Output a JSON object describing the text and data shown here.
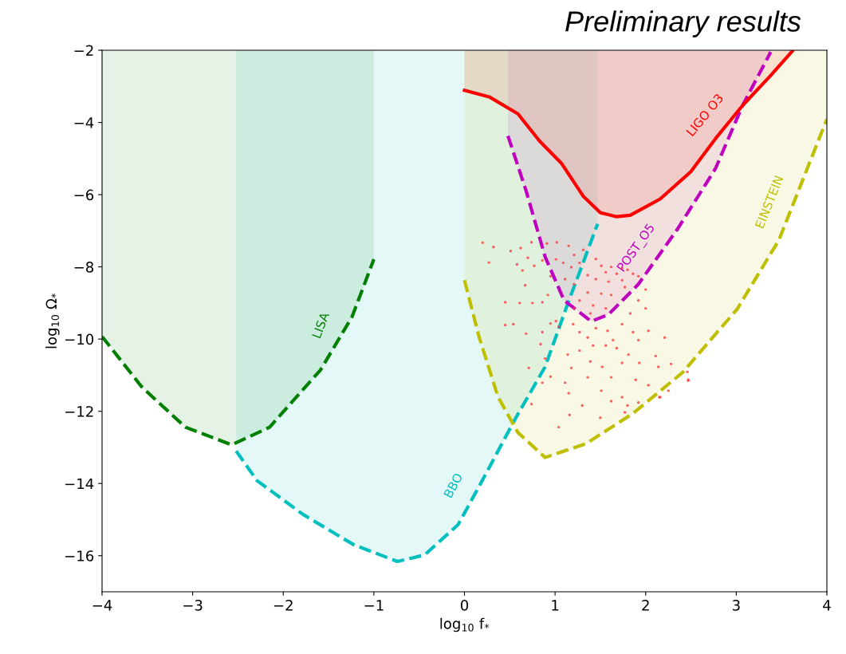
{
  "chart_data": {
    "type": "area",
    "title": "Preliminary results",
    "xlabel": "log$_{10}$ f$_{*}$",
    "ylabel": "log$_{10}$ Ω$_{*}$",
    "xlim": [
      -4,
      4
    ],
    "ylim": [
      -17,
      -2
    ],
    "xticks": [
      {
        "value": -4,
        "label": "−4"
      },
      {
        "value": -3,
        "label": "−3"
      },
      {
        "value": -2,
        "label": "−2"
      },
      {
        "value": -1,
        "label": "−1"
      },
      0,
      1,
      2,
      3,
      4
    ],
    "yticks": [
      {
        "value": -16,
        "label": "−16"
      },
      {
        "value": -14,
        "label": "−14"
      },
      {
        "value": -12,
        "label": "−12"
      },
      {
        "value": -10,
        "label": "−10"
      },
      {
        "value": -8,
        "label": "−8"
      },
      {
        "value": -6,
        "label": "−6"
      },
      {
        "value": -4,
        "label": "−4"
      },
      {
        "value": -2,
        "label": "−2"
      }
    ],
    "grid": false,
    "legend": false,
    "series": [
      {
        "color": "#008000",
        "line_style": "dashed",
        "x": [
          -4,
          -3.56,
          -3.08,
          -2.57,
          -2.15,
          -1.59,
          -1.24,
          -1.0
        ],
        "values": [
          -9.93,
          -11.33,
          -12.44,
          -12.93,
          -12.44,
          -10.86,
          -9.38,
          -7.79
        ]
      },
      {
        "color": "#00bfbf",
        "line_style": "dashed",
        "x": [
          -2.52,
          -2.29,
          -1.78,
          -1.22,
          -0.74,
          -0.44,
          -0.07,
          0.22,
          0.56,
          0.89,
          1.13,
          1.47
        ],
        "values": [
          -13.1,
          -13.92,
          -14.86,
          -15.7,
          -16.16,
          -15.98,
          -15.14,
          -13.81,
          -12.21,
          -10.77,
          -9.09,
          -6.81
        ]
      },
      {
        "color": "#bf00bf",
        "line_style": "dashed",
        "x": [
          0.48,
          0.68,
          0.89,
          1.1,
          1.4,
          1.59,
          1.92,
          2.35,
          2.77,
          3.07,
          3.38
        ],
        "values": [
          -4.37,
          -5.89,
          -7.72,
          -8.93,
          -9.51,
          -9.32,
          -8.48,
          -6.96,
          -5.28,
          -3.53,
          -2.05
        ]
      },
      {
        "color": "#ff0000",
        "line_style": "solid",
        "x": [
          0,
          0.28,
          0.59,
          0.83,
          1.07,
          1.31,
          1.5,
          1.68,
          1.83,
          2.16,
          2.5,
          2.77,
          3.07,
          3.38,
          3.62
        ],
        "values": [
          -3.11,
          -3.3,
          -3.76,
          -4.52,
          -5.13,
          -6.04,
          -6.5,
          -6.61,
          -6.57,
          -6.12,
          -5.36,
          -4.45,
          -3.53,
          -2.7,
          -2.02
        ]
      },
      {
        "color": "#bfbf00",
        "line_style": "dashed",
        "x": [
          0,
          0.16,
          0.37,
          0.59,
          0.89,
          1.34,
          1.86,
          2.41,
          3.01,
          3.47,
          4.0
        ],
        "values": [
          -8.37,
          -9.93,
          -11.6,
          -12.59,
          -13.28,
          -12.9,
          -12.06,
          -10.92,
          -9.17,
          -7.26,
          -3.91
        ]
      },
      {
        "type": "scatter",
        "color": "#ff3b3b",
        "marker": "circle",
        "x": [
          0.2,
          0.32,
          0.27,
          0.51,
          0.62,
          0.74,
          0.7,
          0.58,
          0.64,
          0.77,
          0.86,
          0.91,
          1.02,
          1.15,
          1.21,
          1.09,
          1.01,
          1.18,
          1.27,
          1.31,
          0.95,
          1.11,
          1.21,
          1.36,
          1.45,
          1.51,
          1.56,
          1.62,
          1.68,
          1.74,
          1.8,
          1.86,
          1.92,
          1.45,
          1.59,
          1.74,
          1.36,
          1.51,
          1.62,
          1.77,
          1.27,
          1.42,
          1.56,
          1.21,
          1.39,
          0.45,
          0.61,
          0.75,
          0.86,
          0.67,
          0.92,
          0.45,
          0.54,
          0.68,
          0.86,
          0.95,
          1.01,
          0.84,
          0.71,
          0.89,
          1.04,
          1.2,
          1.27,
          1.36,
          1.45,
          1.58,
          1.64,
          1.74,
          1.83,
          1.92,
          2.0,
          2.0,
          1.86,
          1.92,
          2.03,
          2.21,
          1.42,
          1.56,
          1.68,
          1.81,
          1.14,
          1.27,
          1.39,
          1.52,
          1.74,
          2.11,
          1.93,
          2.14,
          2.28,
          1.18,
          1.36,
          1.62,
          1.89,
          2.03,
          2.25,
          2.46,
          2.47,
          0.95,
          1.11,
          1.15,
          1.51,
          1.74,
          2.15,
          0.86,
          1.04,
          1.16,
          1.5,
          0.74,
          1.3,
          1.62,
          1.77,
          1.92,
          2.16,
          2.47,
          1.8
        ],
        "values": [
          -7.33,
          -7.45,
          -7.88,
          -7.56,
          -7.48,
          -7.32,
          -7.75,
          -7.93,
          -8.1,
          -7.97,
          -7.82,
          -7.35,
          -7.32,
          -7.42,
          -7.67,
          -7.89,
          -7.79,
          -8.01,
          -7.89,
          -7.53,
          -8.26,
          -8.34,
          -8.48,
          -8.23,
          -7.78,
          -7.97,
          -8.15,
          -8.0,
          -8.19,
          -8.04,
          -8.08,
          -8.19,
          -8.26,
          -8.34,
          -8.41,
          -8.37,
          -8.71,
          -8.74,
          -8.78,
          -8.56,
          -8.93,
          -9.07,
          -9.15,
          -9.15,
          -9.29,
          -8.98,
          -9.0,
          -9.0,
          -8.98,
          -8.51,
          -8.78,
          -9.61,
          -9.59,
          -9.85,
          -9.81,
          -9.57,
          -9.5,
          -10.14,
          -10.8,
          -10.54,
          -9.66,
          -9.59,
          -9.81,
          -9.96,
          -9.7,
          -9.77,
          -10.03,
          -9.59,
          -9.29,
          -8.93,
          -8.63,
          -9.15,
          -9.81,
          -10.03,
          -9.77,
          -9.96,
          -10.18,
          -10.18,
          -10.25,
          -10.43,
          -10.43,
          -10.32,
          -10.62,
          -10.77,
          -10.66,
          -10.47,
          -10.66,
          -10.77,
          -10.69,
          -10.8,
          -11.06,
          -11.06,
          -11.13,
          -11.28,
          -11.43,
          -10.91,
          -11.13,
          -11.04,
          -11.21,
          -11.5,
          -11.43,
          -11.61,
          -11.61,
          -11.21,
          -12.44,
          -12.1,
          -12.18,
          -11.8,
          -11.84,
          -11.72,
          -12.03,
          -11.76,
          -11.61,
          -11.15,
          -11.84
        ]
      }
    ],
    "annotations": [
      {
        "text": "LISA",
        "x": -1.35,
        "y": -9.85
      },
      {
        "text": "BBO",
        "x": 0.1,
        "y": -14.36
      },
      {
        "text": "POST_O5",
        "x": 2.1,
        "y": -7.84
      },
      {
        "text": "LIGO O3",
        "x": 2.85,
        "y": -4.2
      },
      {
        "text": "EINSTEIN",
        "x": 3.6,
        "y": -6.44
      }
    ]
  }
}
